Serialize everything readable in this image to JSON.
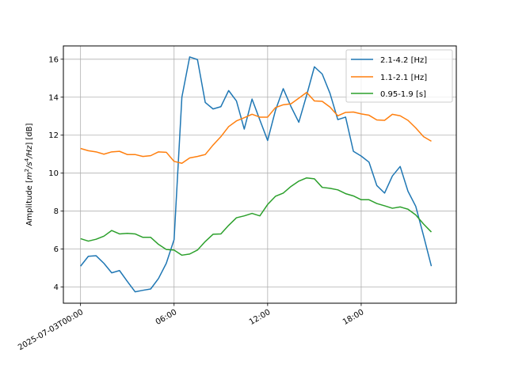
{
  "chart_data": {
    "type": "line",
    "title": "",
    "xlabel": "",
    "ylabel": "Amplitude [m²/s⁴/Hz] [dB]",
    "ylabel_parts": {
      "prefix": "Amplitude [",
      "m": "m",
      "m_exp": "2",
      "mid": "/s",
      "s_exp": "4",
      "hz": "/Hz",
      "suffix": "] [dB]"
    },
    "xlim": [
      -1.1,
      24.1
    ],
    "ylim": [
      3.15,
      16.7
    ],
    "grid": true,
    "legend_position": "top-right",
    "x_ticks": [
      {
        "value": 0,
        "label": "2025-07-03T00:00"
      },
      {
        "value": 6,
        "label": "06:00"
      },
      {
        "value": 12,
        "label": "12:00"
      },
      {
        "value": 18,
        "label": "18:00"
      }
    ],
    "y_ticks": [
      {
        "value": 4,
        "label": "4"
      },
      {
        "value": 6,
        "label": "6"
      },
      {
        "value": 8,
        "label": "8"
      },
      {
        "value": 10,
        "label": "10"
      },
      {
        "value": 12,
        "label": "12"
      },
      {
        "value": 14,
        "label": "14"
      },
      {
        "value": 16,
        "label": "16"
      }
    ],
    "x": [
      0,
      0.5,
      1,
      1.5,
      2,
      2.5,
      3,
      3.5,
      4,
      4.5,
      5,
      5.5,
      6,
      6.5,
      7,
      7.5,
      8,
      8.5,
      9,
      9.5,
      10,
      10.5,
      11,
      11.5,
      12,
      12.5,
      13,
      13.5,
      14,
      14.5,
      15,
      15.5,
      16,
      16.5,
      17,
      17.5,
      18,
      18.5,
      19,
      19.5,
      20,
      20.5,
      21,
      21.5,
      22,
      22.5
    ],
    "series": [
      {
        "name": "2.1-4.2 [Hz]",
        "color": "#1f77b4",
        "values": [
          5.1,
          5.62,
          5.65,
          5.25,
          4.75,
          4.87,
          4.3,
          3.75,
          3.83,
          3.9,
          4.45,
          5.25,
          6.5,
          14.0,
          16.12,
          15.98,
          13.72,
          13.38,
          13.5,
          14.35,
          13.8,
          12.32,
          13.9,
          12.8,
          11.72,
          13.3,
          14.45,
          13.5,
          12.68,
          14.1,
          15.6,
          15.22,
          14.2,
          12.82,
          12.95,
          11.15,
          10.9,
          10.58,
          9.35,
          8.95,
          9.85,
          10.35,
          9.05,
          8.25,
          6.7,
          5.1
        ]
      },
      {
        "name": "1.1-2.1 [Hz]",
        "color": "#ff7f0e",
        "values": [
          11.3,
          11.18,
          11.12,
          11.0,
          11.12,
          11.15,
          10.98,
          10.98,
          10.88,
          10.92,
          11.12,
          11.1,
          10.62,
          10.52,
          10.8,
          10.88,
          10.98,
          11.48,
          11.92,
          12.45,
          12.75,
          12.92,
          13.1,
          12.95,
          12.95,
          13.45,
          13.6,
          13.65,
          13.95,
          14.25,
          13.8,
          13.78,
          13.48,
          13.02,
          13.2,
          13.22,
          13.12,
          13.05,
          12.8,
          12.78,
          13.1,
          13.02,
          12.78,
          12.38,
          11.92,
          11.68
        ]
      },
      {
        "name": "0.95-1.9 [s]",
        "color": "#2ca02c",
        "values": [
          6.55,
          6.42,
          6.52,
          6.68,
          6.98,
          6.8,
          6.83,
          6.8,
          6.62,
          6.62,
          6.25,
          5.98,
          5.95,
          5.68,
          5.74,
          5.95,
          6.4,
          6.78,
          6.8,
          7.25,
          7.65,
          7.75,
          7.88,
          7.75,
          8.35,
          8.78,
          8.95,
          9.3,
          9.58,
          9.75,
          9.7,
          9.25,
          9.2,
          9.12,
          8.92,
          8.8,
          8.6,
          8.6,
          8.4,
          8.28,
          8.15,
          8.22,
          8.1,
          7.8,
          7.32,
          6.9
        ]
      }
    ]
  }
}
